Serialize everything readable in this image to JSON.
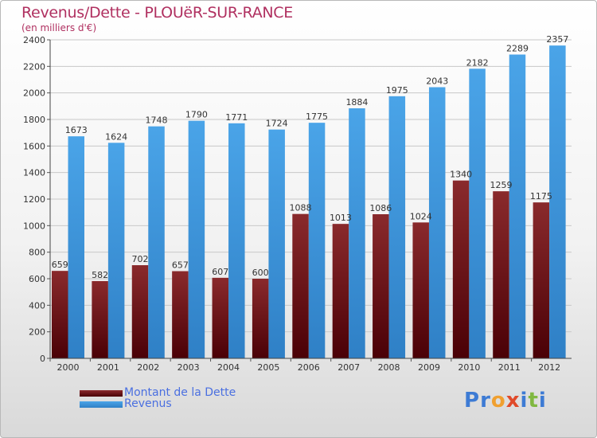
{
  "header": {
    "title": "Revenus/Dette - PLOUëR-SUR-RANCE",
    "subtitle": "(en milliers d'€)"
  },
  "legend": {
    "items": [
      {
        "label": "Montant de la Dette",
        "color": "#6b0d10"
      },
      {
        "label": "Revenus",
        "color": "#3d95dc"
      }
    ]
  },
  "brand": {
    "letters": [
      "P",
      "r",
      "o",
      "x",
      "i",
      "t",
      "i"
    ],
    "colors": [
      "#3d7bd4",
      "#3d7bd4",
      "#f0a030",
      "#e04a2a",
      "#3d7bd4",
      "#80b840",
      "#3d7bd4"
    ]
  },
  "chart_data": {
    "type": "bar",
    "categories": [
      "2000",
      "2001",
      "2002",
      "2003",
      "2004",
      "2005",
      "2006",
      "2007",
      "2008",
      "2009",
      "2010",
      "2011",
      "2012"
    ],
    "series": [
      {
        "name": "Montant de la Dette",
        "color": "#6b0d10",
        "values": [
          659,
          582,
          702,
          657,
          607,
          600,
          1088,
          1013,
          1086,
          1024,
          1340,
          1259,
          1175
        ],
        "labels": [
          "659",
          "582",
          "702",
          "657",
          "607",
          "600",
          "1088",
          "1013",
          "1086",
          "1024",
          "1340",
          "1259",
          "1175"
        ]
      },
      {
        "name": "Revenus",
        "color": "#3d95dc",
        "values": [
          1673,
          1624,
          1748,
          1790,
          1771,
          1724,
          1775,
          1884,
          1975,
          2043,
          2182,
          2289,
          2357
        ],
        "labels": [
          "1673",
          "1624",
          "1748",
          "1790",
          "1771",
          "1724",
          "1775",
          "1884",
          "1975",
          "2043",
          "2182",
          "2289",
          "2357"
        ]
      }
    ],
    "yticks": [
      "0",
      "200",
      "400",
      "600",
      "800",
      "1000",
      "1200",
      "1400",
      "1600",
      "1800",
      "2000",
      "2200",
      "2400"
    ],
    "ylim": [
      0,
      2400
    ],
    "grid": true
  }
}
